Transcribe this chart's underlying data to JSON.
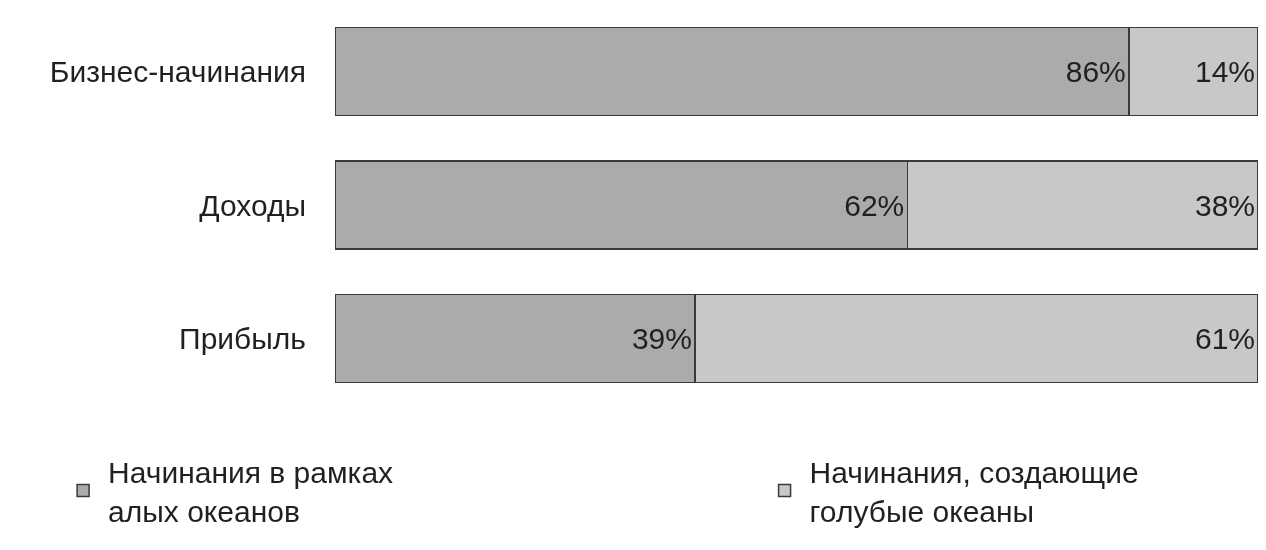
{
  "chart_data": {
    "type": "bar",
    "orientation": "horizontal",
    "stacked": true,
    "tick_labels": "y",
    "legend": "bottom",
    "categories": [
      "Бизнес-начинания",
      "Доходы",
      "Прибыль"
    ],
    "xlim": [
      0,
      100
    ],
    "series": [
      {
        "name": "Начинания в рамках\nалых океанов",
        "color": "#ababab",
        "values": [
          86,
          62,
          39
        ],
        "value_labels": [
          "86%",
          "62%",
          "39%"
        ]
      },
      {
        "name": "Начинания, создающие\nголубые океаны",
        "color": "#c8c8c8",
        "values": [
          14,
          38,
          61
        ],
        "value_labels": [
          "14%",
          "38%",
          "61%"
        ]
      }
    ]
  }
}
